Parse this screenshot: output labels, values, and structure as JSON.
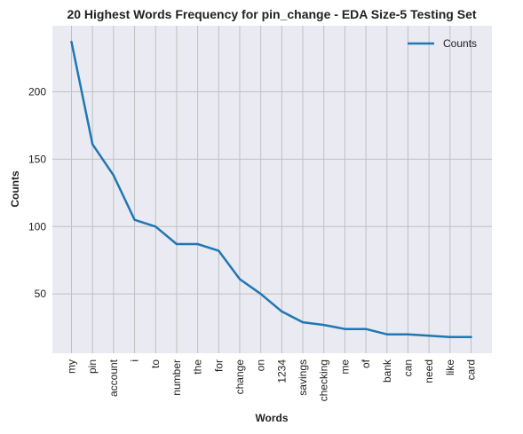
{
  "chart_data": {
    "type": "line",
    "title": "20 Highest Words Frequency for pin_change - EDA Size-5 Testing Set",
    "xlabel": "Words",
    "ylabel": "Counts",
    "categories": [
      "my",
      "pin",
      "account",
      "i",
      "to",
      "number",
      "the",
      "for",
      "change",
      "on",
      "1234",
      "savings",
      "checking",
      "me",
      "of",
      "bank",
      "can",
      "need",
      "like",
      "card"
    ],
    "series": [
      {
        "name": "Counts",
        "values": [
          237,
          161,
          138,
          105,
          100,
          87,
          87,
          82,
          61,
          50,
          37,
          29,
          27,
          24,
          24,
          20,
          20,
          19,
          18,
          18
        ]
      }
    ],
    "ylim": [
      6,
      249
    ],
    "yticks": [
      50,
      100,
      150,
      200
    ],
    "grid": true,
    "legend_position": "top-right",
    "colors": {
      "line": "#1f77b4",
      "plot_bg": "#eaeaf2",
      "grid": "#c0c0c0"
    }
  }
}
